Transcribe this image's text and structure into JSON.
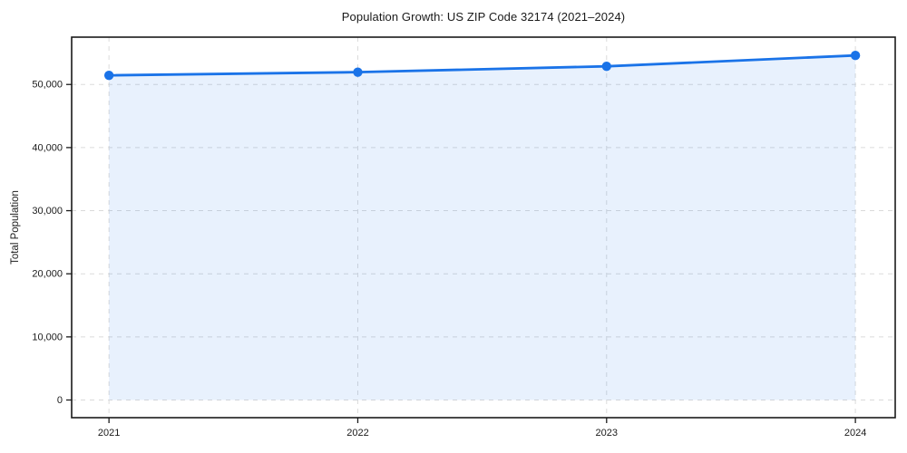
{
  "chart_data": {
    "type": "line",
    "title": "Population Growth: US ZIP Code 32174 (2021–2024)",
    "series_name": "Total Population",
    "x": [
      2021,
      2022,
      2023,
      2024
    ],
    "values": [
      51450,
      51950,
      52880,
      54600
    ],
    "xlabel": "",
    "ylabel": "Total Population",
    "xtick_labels": [
      "2021",
      "2022",
      "2023",
      "2024"
    ],
    "ytick_values": [
      0,
      10000,
      20000,
      30000,
      40000,
      50000
    ],
    "ytick_labels": [
      "0",
      "10,000",
      "20,000",
      "30,000",
      "40,000",
      "50,000"
    ],
    "xlim": [
      2020.85,
      2024.16
    ],
    "ylim": [
      -2800,
      57500
    ],
    "grid": true,
    "grid_style": "dashed",
    "legend_position": "none",
    "area_fill": true,
    "marker": "circle",
    "marker_size": 5.2,
    "line_width": 2.8,
    "colors": {
      "line": "#1a73e8",
      "marker": "#1a73e8",
      "fill": "#1a73e8",
      "fill_opacity": 0.1,
      "grid": "#d7d7d7",
      "axis": "#1a1a1a",
      "text": "#1a1a1a"
    }
  }
}
